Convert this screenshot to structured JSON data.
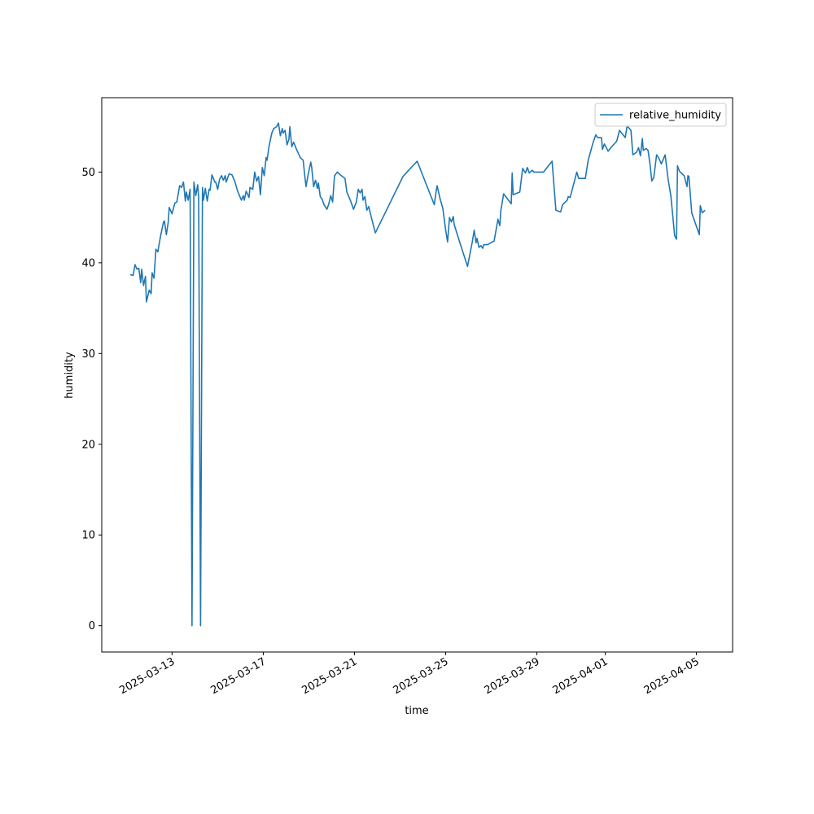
{
  "chart_data": {
    "type": "line",
    "xlabel": "time",
    "ylabel": "humidity",
    "legend": "upper right",
    "x": [
      "2025-03-11T04:00",
      "2025-03-11T07:00",
      "2025-03-11T09:00",
      "2025-03-11T11:00",
      "2025-03-11T13:00",
      "2025-03-11T15:00",
      "2025-03-11T16:00",
      "2025-03-11T18:00",
      "2025-03-11T20:00",
      "2025-03-11T21:00",
      "2025-03-12T00:00",
      "2025-03-12T02:00",
      "2025-03-12T03:00",
      "2025-03-12T05:00",
      "2025-03-12T07:00",
      "2025-03-12T09:00",
      "2025-03-12T10:00",
      "2025-03-12T12:00",
      "2025-03-12T15:00",
      "2025-03-12T16:00",
      "2025-03-12T18:00",
      "2025-03-12T20:00",
      "2025-03-12T21:00",
      "2025-03-13T00:00",
      "2025-03-13T03:00",
      "2025-03-13T05:00",
      "2025-03-13T08:00",
      "2025-03-13T10:00",
      "2025-03-13T12:00",
      "2025-03-13T14:00",
      "2025-03-13T15:00",
      "2025-03-13T17:00",
      "2025-03-13T19:00",
      "2025-03-13T21:00",
      "2025-03-13T23:00",
      "2025-03-14T01:00",
      "2025-03-14T03:00",
      "2025-03-14T04:00",
      "2025-03-14T06:00",
      "2025-03-14T08:00",
      "2025-03-14T09:00",
      "2025-03-14T11:00",
      "2025-03-14T13:00",
      "2025-03-14T15:00",
      "2025-03-14T16:00",
      "2025-03-14T18:00",
      "2025-03-14T21:00",
      "2025-03-14T22:00",
      "2025-03-15T00:00",
      "2025-03-15T02:00",
      "2025-03-15T04:00",
      "2025-03-15T06:00",
      "2025-03-15T08:00",
      "2025-03-15T09:00",
      "2025-03-15T12:00",
      "2025-03-15T15:00",
      "2025-03-15T18:00",
      "2025-03-15T21:00",
      "2025-03-16T01:00",
      "2025-03-16T03:00",
      "2025-03-16T04:00",
      "2025-03-16T06:00",
      "2025-03-16T09:00",
      "2025-03-16T10:00",
      "2025-03-16T13:00",
      "2025-03-16T15:00",
      "2025-03-16T17:00",
      "2025-03-16T19:00",
      "2025-03-16T21:00",
      "2025-03-16T23:00",
      "2025-03-17T01:00",
      "2025-03-17T03:00",
      "2025-03-17T04:00",
      "2025-03-17T06:00",
      "2025-03-17T09:00",
      "2025-03-17T11:00",
      "2025-03-17T14:00",
      "2025-03-17T16:00",
      "2025-03-17T18:00",
      "2025-03-17T20:00",
      "2025-03-17T21:00",
      "2025-03-17T23:00",
      "2025-03-18T01:00",
      "2025-03-18T03:00",
      "2025-03-18T04:00",
      "2025-03-18T06:00",
      "2025-03-18T08:00",
      "2025-03-18T11:00",
      "2025-03-18T15:00",
      "2025-03-18T18:00",
      "2025-03-18T20:00",
      "2025-03-18T21:00",
      "2025-03-18T23:00",
      "2025-03-19T02:00",
      "2025-03-19T03:00",
      "2025-03-19T05:00",
      "2025-03-19T07:00",
      "2025-03-19T09:00",
      "2025-03-19T10:00",
      "2025-03-19T12:00",
      "2025-03-19T14:00",
      "2025-03-19T16:00",
      "2025-03-19T19:00",
      "2025-03-19T21:00",
      "2025-03-19T23:00",
      "2025-03-20T01:00",
      "2025-03-20T03:00",
      "2025-03-20T06:00",
      "2025-03-20T09:00",
      "2025-03-20T14:00",
      "2025-03-20T16:00",
      "2025-03-20T20:00",
      "2025-03-20T23:00",
      "2025-03-21T02:00",
      "2025-03-21T04:00",
      "2025-03-21T06:00",
      "2025-03-21T08:00",
      "2025-03-21T09:00",
      "2025-03-21T11:00",
      "2025-03-21T13:00",
      "2025-03-21T15:00",
      "2025-03-21T18:00",
      "2025-03-21T22:00",
      "2025-03-23T03:00",
      "2025-03-23T09:00",
      "2025-03-23T18:00",
      "2025-03-24T12:00",
      "2025-03-24T14:00",
      "2025-03-24T15:00",
      "2025-03-24T18:00",
      "2025-03-24T21:00",
      "2025-03-25T00:00",
      "2025-03-25T02:00",
      "2025-03-25T04:00",
      "2025-03-25T06:00",
      "2025-03-25T08:00",
      "2025-03-25T09:00",
      "2025-03-25T15:00",
      "2025-03-25T23:00",
      "2025-03-26T04:00",
      "2025-03-26T06:00",
      "2025-03-26T08:00",
      "2025-03-26T09:00",
      "2025-03-26T11:00",
      "2025-03-26T13:00",
      "2025-03-26T15:00",
      "2025-03-26T16:00",
      "2025-03-26T20:00",
      "2025-03-27T03:00",
      "2025-03-27T07:00",
      "2025-03-27T09:00",
      "2025-03-27T10:00",
      "2025-03-27T13:00",
      "2025-03-27T21:00",
      "2025-03-27T22:00",
      "2025-03-27T23:00",
      "2025-03-28T06:00",
      "2025-03-28T09:00",
      "2025-03-28T12:00",
      "2025-03-28T14:00",
      "2025-03-28T16:00",
      "2025-03-28T19:00",
      "2025-03-28T21:00",
      "2025-03-29T07:00",
      "2025-03-29T16:00",
      "2025-03-29T20:00",
      "2025-03-30T01:00",
      "2025-03-30T03:00",
      "2025-03-30T08:00",
      "2025-03-30T09:00",
      "2025-03-30T11:00",
      "2025-03-30T15:00",
      "2025-03-30T18:00",
      "2025-03-30T20:00",
      "2025-03-31T03:00",
      "2025-03-31T06:00",
      "2025-03-31T11:00",
      "2025-03-31T14:00",
      "2025-03-31T16:00",
      "2025-03-31T20:00",
      "2025-03-31T21:00",
      "2025-03-31T23:00",
      "2025-04-01T03:00",
      "2025-04-01T06:00",
      "2025-04-01T12:00",
      "2025-04-01T15:00",
      "2025-04-01T18:00",
      "2025-04-01T21:00",
      "2025-04-01T23:00",
      "2025-04-02T03:00",
      "2025-04-02T05:00",
      "2025-04-02T09:00",
      "2025-04-02T11:00",
      "2025-04-02T13:00",
      "2025-04-02T15:00",
      "2025-04-02T16:00",
      "2025-04-02T19:00",
      "2025-04-02T21:00",
      "2025-04-02T23:00",
      "2025-04-03T01:00",
      "2025-04-03T03:00",
      "2025-04-03T04:00",
      "2025-04-03T06:00",
      "2025-04-03T08:00",
      "2025-04-03T11:00",
      "2025-04-03T15:00",
      "2025-04-03T18:00",
      "2025-04-03T21:00",
      "2025-04-04T01:00",
      "2025-04-04T03:00",
      "2025-04-04T04:00",
      "2025-04-04T06:00",
      "2025-04-04T09:00",
      "2025-04-04T11:00",
      "2025-04-04T14:00",
      "2025-04-04T15:00",
      "2025-04-04T16:00",
      "2025-04-04T19:00",
      "2025-04-05T03:00",
      "2025-04-05T04:00",
      "2025-04-05T06:00",
      "2025-04-05T09:00"
    ],
    "series": [
      {
        "name": "relative_humidity",
        "color": "#1f77b4",
        "values": [
          38.7,
          38.6,
          39.8,
          39.3,
          39.4,
          37.8,
          39.3,
          37.5,
          38.5,
          35.7,
          37,
          36.6,
          38.9,
          38.3,
          41.5,
          41.2,
          41.8,
          43,
          44.5,
          44.6,
          43.1,
          44.5,
          46.1,
          45.4,
          46.6,
          46.7,
          48.5,
          48.3,
          48.9,
          46.8,
          47.8,
          46.9,
          48.1,
          0,
          48.9,
          47.4,
          48.6,
          47.2,
          0,
          48.3,
          46.9,
          48.2,
          46.8,
          48.1,
          48.0,
          49.7,
          48.9,
          48.9,
          48.1,
          49.2,
          49.6,
          49.1,
          49.6,
          48.9,
          49.8,
          49.7,
          49.0,
          47.9,
          46.9,
          47.4,
          46.9,
          47.9,
          47.2,
          48.3,
          48.1,
          50.0,
          49.0,
          49.5,
          47.5,
          50.5,
          49.6,
          51.6,
          51.3,
          52.8,
          54.3,
          54.8,
          55.0,
          55.4,
          54.0,
          54.8,
          54.3,
          54.6,
          53.0,
          53.6,
          55.0,
          52.8,
          53.3,
          52.5,
          51.6,
          51.3,
          49.3,
          48.4,
          49.6,
          51.1,
          50.5,
          48.4,
          49.1,
          48.2,
          48.8,
          47.3,
          47.0,
          46.4,
          45.9,
          46.5,
          47.4,
          46.7,
          49.6,
          50.0,
          49.7,
          49.3,
          47.8,
          46.8,
          45.9,
          46.7,
          48.1,
          47.7,
          48.1,
          46.9,
          47.3,
          45.8,
          46.2,
          44.9,
          43.3,
          49.5,
          50.2,
          51.2,
          46.4,
          47.9,
          48.5,
          47.1,
          46.0,
          43.6,
          42.3,
          45.0,
          44.5,
          45.1,
          44.2,
          42.2,
          39.6,
          42.3,
          43.6,
          42.2,
          42.7,
          41.7,
          41.9,
          41.6,
          42.0,
          42.0,
          42.4,
          44.8,
          44.1,
          45.7,
          47.6,
          46.5,
          49.9,
          47.5,
          47.8,
          50.4,
          49.9,
          50.5,
          49.9,
          50.2,
          50.0,
          50.0,
          51.2,
          45.8,
          45.6,
          46.4,
          46.9,
          47.3,
          47.2,
          48.8,
          50.0,
          49.3,
          49.3,
          51.3,
          53.2,
          54.1,
          53.8,
          53.8,
          52.5,
          53.1,
          52.3,
          52.7,
          53.4,
          54.6,
          54.2,
          53.8,
          55.1,
          54.6,
          51.9,
          52.2,
          52.7,
          51.8,
          53.7,
          52.4,
          52.6,
          52.4,
          50.9,
          49.0,
          49.4,
          50.2,
          51.9,
          51.6,
          50.9,
          51.9,
          49.3,
          47.4,
          43.0,
          42.6,
          50.7,
          50.1,
          49.8,
          49.6,
          48.4,
          49.6,
          49.5,
          45.5,
          43.1,
          46.3,
          45.5,
          45.8
        ]
      }
    ],
    "xlim": [
      "2025-03-09T22:00",
      "2025-04-06T14:00"
    ],
    "xticks": [
      "2025-03-13",
      "2025-03-17",
      "2025-03-21",
      "2025-03-25",
      "2025-03-29",
      "2025-04-01",
      "2025-04-05"
    ],
    "ylim": [
      -2.9,
      58.2
    ],
    "yticks": [
      0,
      10,
      20,
      30,
      40,
      50
    ]
  }
}
